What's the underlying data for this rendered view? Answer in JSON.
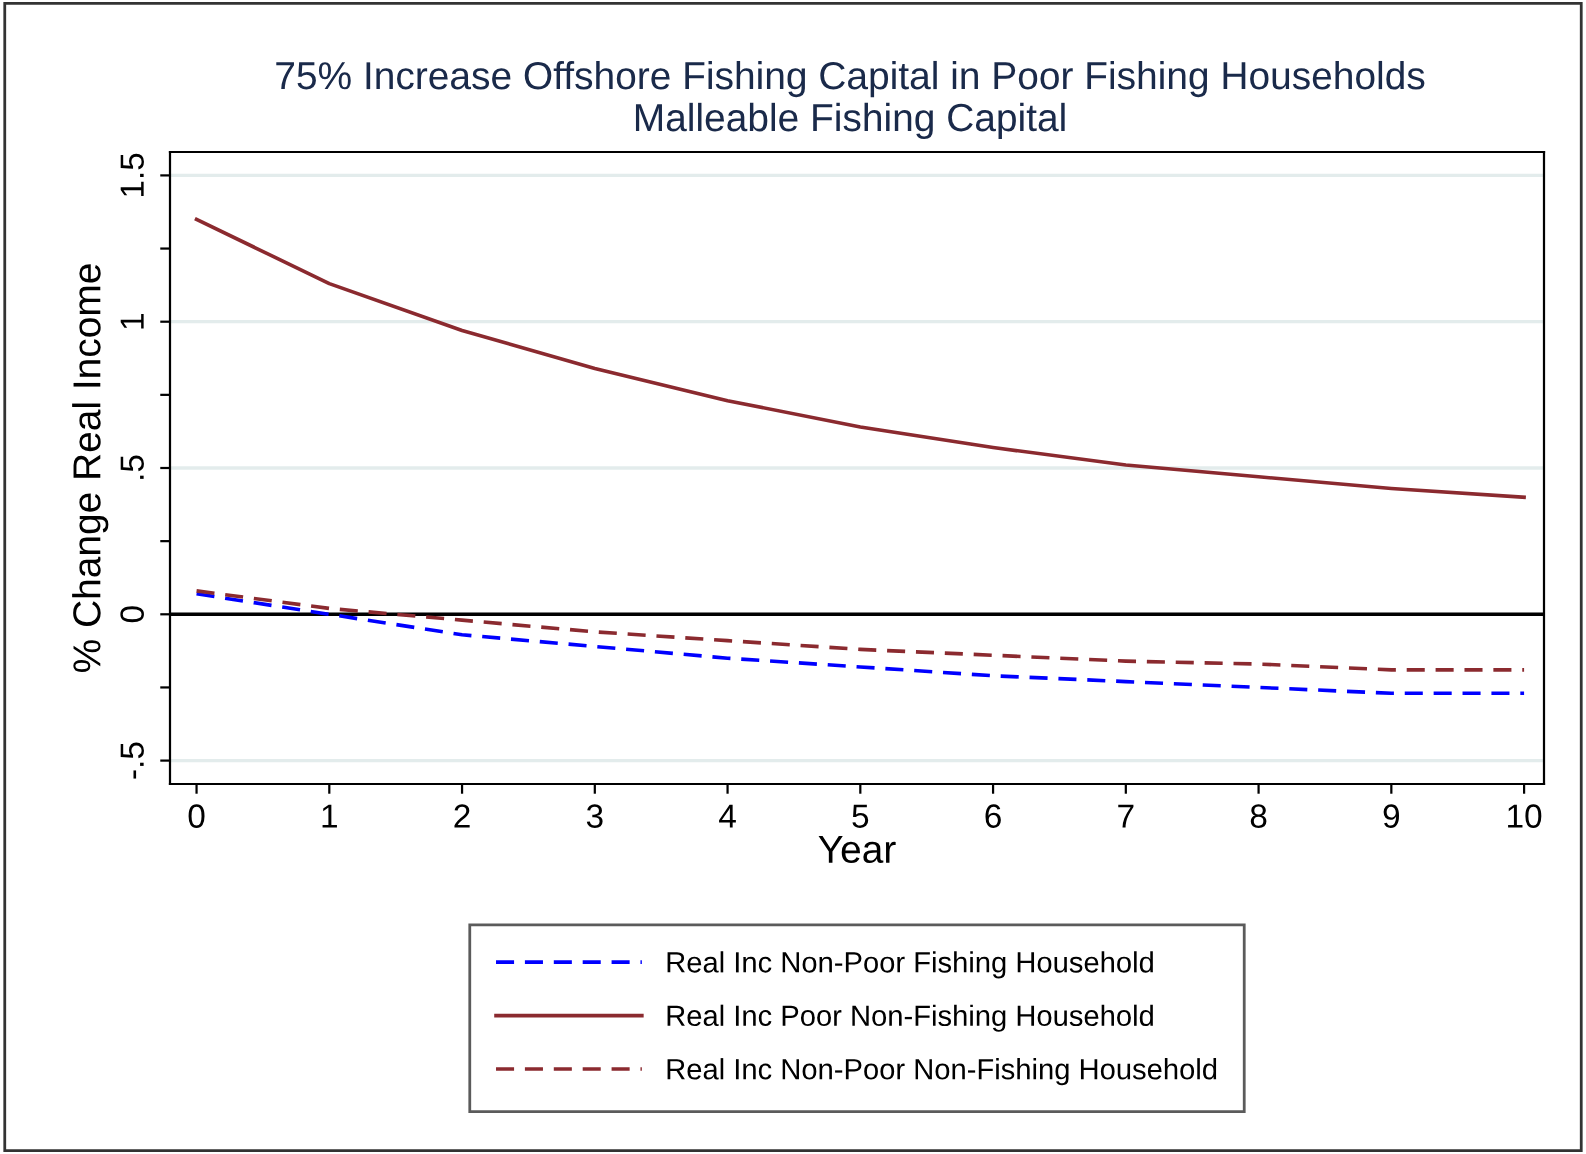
{
  "chart_data": {
    "type": "line",
    "title": "75% Increase Offshore Fishing Capital in Poor Fishing Households\nMalleable Fishing Capital",
    "xlabel": "Year",
    "ylabel": "% Change Real Income",
    "x": [
      0,
      1,
      2,
      3,
      4,
      5,
      6,
      7,
      8,
      9,
      10
    ],
    "series": [
      {
        "name": "Real Inc Non-Poor Fishing Household",
        "color": "#0000ff",
        "line_style": "dashed",
        "values": [
          0.07,
          0.0,
          -0.07,
          -0.11,
          -0.15,
          -0.18,
          -0.21,
          -0.23,
          -0.25,
          -0.27,
          -0.27
        ]
      },
      {
        "name": "Real Inc Poor Non-Fishing Household",
        "color": "#8b2a2f",
        "line_style": "solid",
        "values": [
          1.35,
          1.13,
          0.97,
          0.84,
          0.73,
          0.64,
          0.57,
          0.51,
          0.47,
          0.43,
          0.4
        ]
      },
      {
        "name": "Real Inc Non-Poor Non-Fishing Household",
        "color": "#8b2a2f",
        "line_style": "dashed",
        "values": [
          0.08,
          0.02,
          -0.02,
          -0.06,
          -0.09,
          -0.12,
          -0.14,
          -0.16,
          -0.17,
          -0.19,
          -0.19
        ]
      }
    ],
    "xlim": [
      -0.2,
      10.15
    ],
    "ylim": [
      -0.58,
      1.58
    ],
    "xticks": [
      0,
      1,
      2,
      3,
      4,
      5,
      6,
      7,
      8,
      9,
      10
    ],
    "yticks": [
      {
        "value": -0.5,
        "label": "-.5"
      },
      {
        "value": -0.25,
        "label": null
      },
      0,
      {
        "value": 0.25,
        "label": null
      },
      {
        "value": 0.5,
        "label": ".5"
      },
      {
        "value": 0.75,
        "label": null
      },
      1,
      {
        "value": 1.25,
        "label": null
      },
      1.5
    ],
    "ref_lines": [
      {
        "axis": "y",
        "value": 0,
        "color": "#000000",
        "line_style": "solid"
      }
    ],
    "grid": "y",
    "legend": "bottom",
    "marker": "none"
  }
}
